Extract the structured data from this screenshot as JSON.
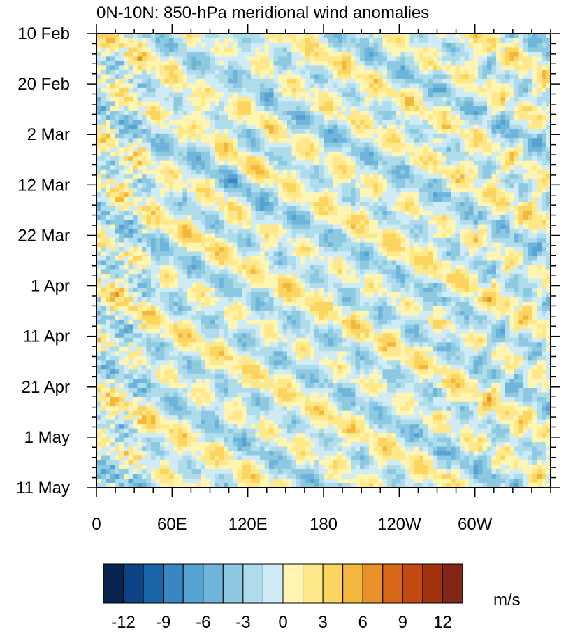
{
  "chart_data": {
    "type": "heatmap",
    "title": "0N-10N: 850-hPa meridional wind anomalies",
    "xlabel": "",
    "ylabel": "",
    "x_axis": {
      "domain": "longitude",
      "range": [
        0,
        360
      ],
      "major_ticks": [
        0,
        60,
        120,
        180,
        240,
        300
      ],
      "tick_labels": [
        "0",
        "60E",
        "120E",
        "180",
        "120W",
        "60W"
      ],
      "minor_step": 15
    },
    "y_axis": {
      "domain": "date",
      "direction": "top-to-bottom",
      "range": [
        "10 Feb",
        "11 May"
      ],
      "major_ticks": [
        "10 Feb",
        "20 Feb",
        "2 Mar",
        "12 Mar",
        "22 Mar",
        "1 Apr",
        "11 Apr",
        "21 Apr",
        "1 May",
        "11 May"
      ],
      "major_tick_days": [
        0,
        10,
        20,
        30,
        40,
        50,
        60,
        70,
        80,
        90
      ],
      "minor_step_days": 2
    },
    "colorbar": {
      "levels": [
        -12,
        -10.5,
        -9,
        -7.5,
        -6,
        -4.5,
        -3,
        -1.5,
        0,
        1.5,
        3,
        4.5,
        6,
        7.5,
        9,
        10.5,
        12
      ],
      "tick_values": [
        -12,
        -9,
        -6,
        -3,
        0,
        3,
        6,
        9,
        12
      ],
      "tick_labels": [
        "-12",
        "-9",
        "-6",
        "-3",
        "0",
        "3",
        "6",
        "9",
        "12"
      ],
      "colors": [
        "#08254f",
        "#0b4383",
        "#1a64a8",
        "#3987c0",
        "#56a2d0",
        "#6fb5db",
        "#8dc9e1",
        "#aedceb",
        "#cfecf6",
        "#fff5b3",
        "#fee88a",
        "#fcd460",
        "#f4b73d",
        "#e8902a",
        "#d8671a",
        "#c24a12",
        "#a3330f",
        "#822716"
      ],
      "unit": "m/s"
    },
    "grid": false,
    "legend": "colorbar-bottom"
  }
}
